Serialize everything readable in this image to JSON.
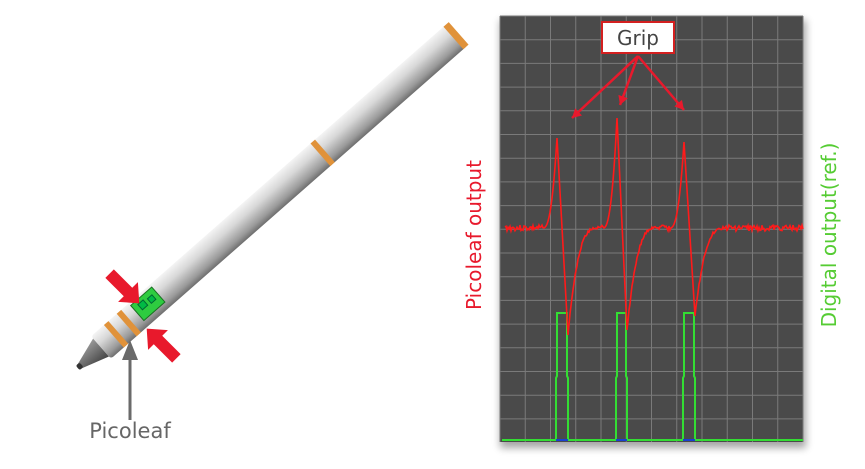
{
  "pen": {
    "label": "Picoleaf"
  },
  "scope": {
    "callout": "Grip",
    "left_axis_label": "Picoleaf output",
    "right_axis_label": "Digital output(ref.)"
  },
  "colors": {
    "analog": "#ff1a1a",
    "digital": "#33dd33",
    "baseline": "#1a3fd0",
    "grid_bg": "#4a4a4a",
    "grid_line": "#7a7a7a",
    "arrow": "#e8192c",
    "ring": "#e0923a"
  }
}
